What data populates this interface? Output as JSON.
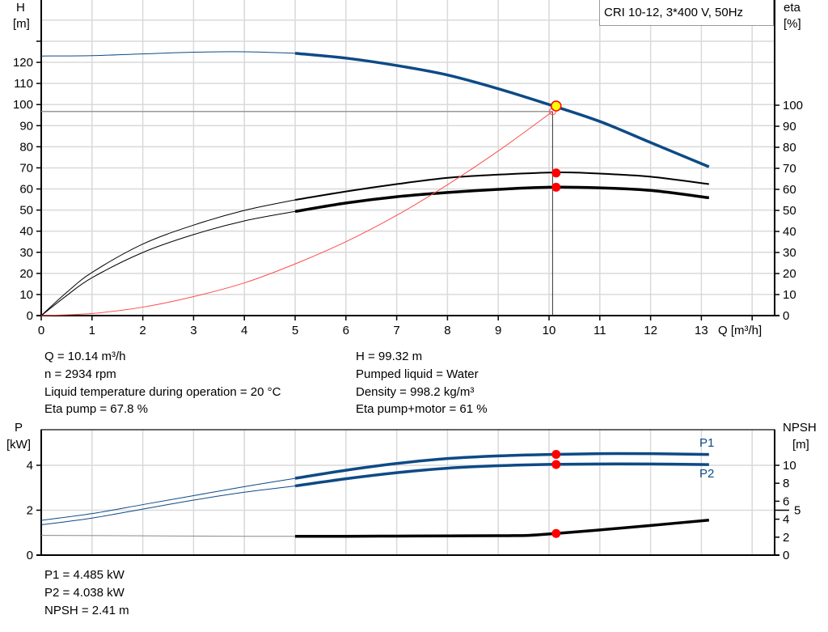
{
  "chart_data": [
    {
      "type": "line",
      "legend_box": "CRI 10-12, 3*400 V, 50Hz",
      "x_axis": {
        "label": "Q [m³/h]",
        "range": [
          0,
          14.5
        ],
        "ticks": [
          0,
          1,
          2,
          3,
          4,
          5,
          6,
          7,
          8,
          9,
          10,
          11,
          12,
          13
        ]
      },
      "y_left": {
        "label_top": "H",
        "label_unit": "[m]",
        "range": [
          0,
          150
        ],
        "ticks": [
          0,
          10,
          20,
          30,
          40,
          50,
          60,
          70,
          80,
          90,
          100,
          110,
          120
        ]
      },
      "y_right": {
        "label_top": "eta",
        "label_unit": "[%]",
        "range": [
          0,
          150
        ],
        "ticks": [
          0,
          10,
          20,
          30,
          40,
          50,
          60,
          70,
          80,
          90,
          100
        ]
      },
      "grid": true,
      "series": [
        {
          "key": "H",
          "axis": "left",
          "color": "#0d4a86",
          "thin_until": 5,
          "x": [
            0,
            1,
            2,
            3,
            4,
            5,
            6,
            7,
            8,
            9,
            10,
            11,
            12,
            13.15
          ],
          "y": [
            123,
            123.2,
            124,
            124.8,
            125,
            124.3,
            122,
            118.5,
            114,
            107.5,
            100,
            92,
            82,
            70.5
          ]
        },
        {
          "key": "eta_pump",
          "axis": "right",
          "color": "#000000",
          "thin_until": 5,
          "x": [
            0,
            0.5,
            1,
            2,
            3,
            4,
            5,
            6,
            7,
            8,
            9,
            10,
            10.5,
            11,
            12,
            13.15
          ],
          "y": [
            0,
            11,
            20.5,
            34,
            43,
            50,
            55,
            59,
            62.5,
            65.5,
            67,
            68,
            68,
            67.5,
            66,
            62.5
          ]
        },
        {
          "key": "eta_pump_motor",
          "axis": "right",
          "color": "#000000",
          "thin_until": 5,
          "x": [
            0,
            0.5,
            1,
            2,
            3,
            4,
            5,
            6,
            7,
            8,
            9,
            10,
            11,
            12,
            13.15
          ],
          "y": [
            0,
            9.5,
            18,
            30,
            38.5,
            45,
            49.5,
            53.5,
            56.5,
            58.5,
            60,
            61,
            60.7,
            59.5,
            56
          ]
        },
        {
          "key": "system_curve",
          "axis": "left",
          "color": "#ff4d4d",
          "x": [
            0,
            1,
            2,
            3,
            4,
            5,
            6,
            7,
            8,
            9,
            10.07
          ],
          "y": [
            0,
            1,
            4,
            9,
            15.5,
            24.5,
            35,
            47.5,
            62,
            78,
            96.7
          ]
        }
      ],
      "duty_point": {
        "Q": 10.14,
        "H": 99.32,
        "eta_pump": 67.8,
        "eta_pump_motor": 61,
        "color": "#ffff00"
      },
      "reference_point": {
        "Q": 10.07,
        "H": 96.7
      }
    },
    {
      "type": "line",
      "x_axis": {
        "range": [
          0,
          14.5
        ]
      },
      "y_left": {
        "label_top": "P",
        "label_unit": "[kW]",
        "range": [
          0,
          5.6
        ],
        "ticks": [
          0,
          2,
          4
        ]
      },
      "y_right": {
        "label_top": "NPSH",
        "label_unit": "[m]",
        "range": [
          0,
          14
        ],
        "ticks": [
          0,
          2,
          4,
          5,
          6,
          8,
          10
        ]
      },
      "grid": true,
      "series": [
        {
          "key": "P1",
          "name": "P1",
          "axis": "left",
          "color": "#0d4a86",
          "thin_until": 5,
          "x": [
            0,
            1,
            2,
            3,
            4,
            5,
            6,
            7,
            8,
            9,
            10,
            11,
            12,
            13.15
          ],
          "y": [
            1.55,
            1.85,
            2.25,
            2.65,
            3.05,
            3.42,
            3.78,
            4.08,
            4.3,
            4.42,
            4.48,
            4.52,
            4.52,
            4.48
          ]
        },
        {
          "key": "P2",
          "name": "P2",
          "axis": "left",
          "color": "#0d4a86",
          "thin_until": 5,
          "x": [
            0,
            1,
            2,
            3,
            4,
            5,
            6,
            7,
            8,
            9,
            10,
            11,
            12,
            13.15
          ],
          "y": [
            1.35,
            1.65,
            2.05,
            2.45,
            2.8,
            3.08,
            3.4,
            3.67,
            3.87,
            3.98,
            4.04,
            4.06,
            4.06,
            4.03
          ]
        },
        {
          "key": "NPSH",
          "axis": "right",
          "color": "#000000",
          "thin_until": 5,
          "x": [
            0,
            2,
            4,
            5,
            6,
            7,
            8,
            9,
            9.6,
            10.14,
            11,
            12,
            13.15
          ],
          "y": [
            2.2,
            2.15,
            2.1,
            2.1,
            2.1,
            2.12,
            2.14,
            2.16,
            2.2,
            2.41,
            2.8,
            3.3,
            3.9
          ]
        }
      ],
      "duty_point": {
        "Q": 10.14,
        "P1": 4.485,
        "P2": 4.038,
        "NPSH": 2.41
      }
    }
  ],
  "readout_top": {
    "q": "Q = 10.14 m³/h",
    "n": "n = 2934 rpm",
    "temp": "Liquid temperature during operation = 20 °C",
    "eta_pump": "Eta pump = 67.8 %",
    "h": "H = 99.32 m",
    "liquid": "Pumped liquid = Water",
    "density": "Density = 998.2 kg/m³",
    "eta_pm": "Eta pump+motor = 61 %"
  },
  "readout_bottom": {
    "p1": "P1 = 4.485 kW",
    "p2": "P2 = 4.038 kW",
    "npsh": "NPSH = 2.41 m"
  }
}
